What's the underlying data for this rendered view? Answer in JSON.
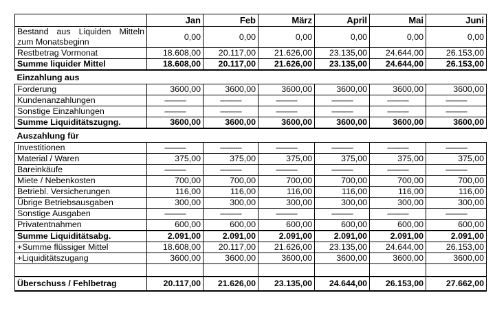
{
  "header": {
    "months": [
      "Jan",
      "Feb",
      "März",
      "April",
      "Mai",
      "Juni"
    ]
  },
  "block1": {
    "rows": [
      {
        "label": "Bestand aus Liquiden Mitteln zum Monatsbeginn",
        "values": [
          "0,00",
          "0,00",
          "0,00",
          "0,00",
          "0,00",
          "0,00"
        ]
      },
      {
        "label": "Restbetrag Vormonat",
        "values": [
          "18.608,00",
          "20.117,00",
          "21.626,00",
          "23.135,00",
          "24.644,00",
          "26.153,00"
        ]
      }
    ],
    "sum": {
      "label": "Summe liquider Mittel",
      "values": [
        "18.608,00",
        "20.117,00",
        "21.626,00",
        "23.135,00",
        "24.644,00",
        "26.153,00"
      ]
    }
  },
  "einzahlung": {
    "title": "Einzahlung aus",
    "rows": [
      {
        "label": "Forderung",
        "values": [
          "3600,00",
          "3600,00",
          "3600,00",
          "3600,00",
          "3600,00",
          "3600,00"
        ]
      },
      {
        "label": "Kundenanzahlungen",
        "values": [
          "----------",
          "----------",
          "----------",
          "----------",
          "----------",
          "----------"
        ]
      },
      {
        "label": "Sonstige Einzahlungen",
        "values": [
          "----------",
          "----------",
          "----------",
          "----------",
          "----------",
          "----------"
        ]
      }
    ],
    "sum": {
      "label": "Summe Liquiditätszugng.",
      "values": [
        "3600,00",
        "3600,00",
        "3600,00",
        "3600,00",
        "3600,00",
        "3600,00"
      ]
    }
  },
  "auszahlung": {
    "title": "Auszahlung für",
    "rows": [
      {
        "label": "Investitionen",
        "values": [
          "----------",
          "----------",
          "----------",
          "----------",
          "----------",
          "----------"
        ]
      },
      {
        "label": "Material / Waren",
        "values": [
          "375,00",
          "375,00",
          "375,00",
          "375,00",
          "375,00",
          "375,00"
        ]
      },
      {
        "label": "Bareinkäufe",
        "values": [
          "----------",
          "----------",
          "----------",
          "----------",
          "----------",
          "----------"
        ]
      },
      {
        "label": "Miete / Nebenkosten",
        "values": [
          "700,00",
          "700,00",
          "700,00",
          "700,00",
          "700,00",
          "700,00"
        ]
      },
      {
        "label": "Betriebl. Versicherungen",
        "values": [
          "116,00",
          "116,00",
          "116,00",
          "116,00",
          "116,00",
          "116,00"
        ]
      },
      {
        "label": "Übrige Betriebsausgaben",
        "values": [
          "300,00",
          "300,00",
          "300,00",
          "300,00",
          "300,00",
          "300,00"
        ]
      },
      {
        "label": "Sonstige Ausgaben",
        "values": [
          "----------",
          "----------",
          "----------",
          "----------",
          "----------",
          "----------"
        ]
      },
      {
        "label": "Privatentnahmen",
        "values": [
          "600,00",
          "600,00",
          "600,00",
          "600,00",
          "600,00",
          "600,00"
        ]
      }
    ],
    "sum": {
      "label": "Summe Liquiditätsabg.",
      "values": [
        "2.091,00",
        "2.091,00",
        "2.091,00",
        "2.091,00",
        "2.091,00",
        "2.091,00"
      ]
    },
    "after": [
      {
        "label": "+Summe flüssiger Mittel",
        "values": [
          "18.608,00",
          "20.117,00",
          "21.626,00",
          "23.135,00",
          "24.644,00",
          "26.153,00"
        ]
      },
      {
        "label": "+Liquiditätszugang",
        "values": [
          "3600,00",
          "3600,00",
          "3600,00",
          "3600,00",
          "3600,00",
          "3600,00"
        ]
      }
    ]
  },
  "total": {
    "label": "Überschuss / Fehlbetrag",
    "values": [
      "20.117,00",
      "21.626,00",
      "23.135,00",
      "24.644,00",
      "26.153,00",
      "27.662,00"
    ]
  }
}
